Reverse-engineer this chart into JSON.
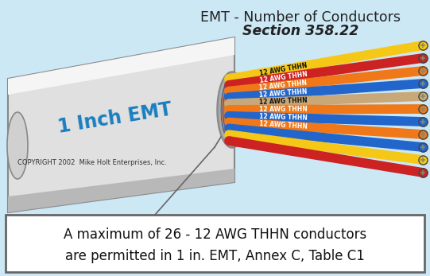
{
  "title_line1": "EMT - Number of Conductors",
  "title_line2": "Section 358.22",
  "bg_color": "#cce8f5",
  "tube_label": "1 Inch EMT",
  "tube_face": "#e0e0e0",
  "tube_top_highlight": "#f5f5f5",
  "tube_bottom_shadow": "#b8b8b8",
  "tube_outline": "#888888",
  "copyright": "COPYRIGHT 2002  Mike Holt Enterprises, Inc.",
  "bottom_text_line1": "A maximum of 26 - 12 AWG THHN conductors",
  "bottom_text_line2": "are permitted in 1 in. EMT, Annex C, Table C1",
  "bottom_box_color": "#ffffff",
  "bottom_box_border": "#666666",
  "tube_text_color": "#1a7fbf",
  "title_color": "#222222",
  "cable_label": "12 AWG THHN",
  "wire_colors": [
    "#f5c818",
    "#cc2222",
    "#f07818",
    "#2266cc",
    "#c8a878",
    "#f07818",
    "#2266cc",
    "#f07818",
    "#2266cc",
    "#f5c818",
    "#cc2222"
  ],
  "wire_label_colors": [
    "#111111",
    "#ffffff",
    "#ffffff",
    "#ffffff",
    "#111111",
    "#ffffff",
    "#ffffff",
    "#ffffff",
    "#ffffff",
    "#111111",
    "#ffffff"
  ]
}
